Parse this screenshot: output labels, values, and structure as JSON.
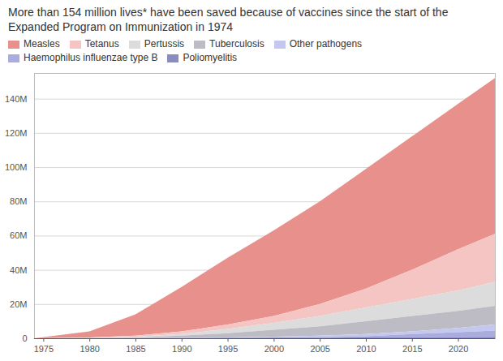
{
  "chart_data": {
    "type": "area",
    "title": "More than 154 million lives* have been saved because of vaccines since the start of the Expanded Program on Immunization in 1974",
    "stacked": true,
    "grid": true,
    "legend": "top",
    "x": [
      1974,
      1980,
      1985,
      1990,
      1995,
      2000,
      2005,
      2010,
      2015,
      2020,
      2024
    ],
    "xlim": [
      1974,
      2024
    ],
    "xticks": [
      1975,
      1980,
      1985,
      1990,
      1995,
      2000,
      2005,
      2010,
      2015,
      2020
    ],
    "ylim": [
      0,
      155
    ],
    "yticks": [
      0,
      {
        "value": 20,
        "label": "20M"
      },
      {
        "value": 40,
        "label": "40M"
      },
      {
        "value": 60,
        "label": "60M"
      },
      {
        "value": 80,
        "label": "80M"
      },
      {
        "value": 100,
        "label": "100M"
      },
      {
        "value": 120,
        "label": "120M"
      },
      {
        "value": 140,
        "label": "140M"
      }
    ],
    "series": [
      {
        "name": "Measles",
        "color": "#e8908c",
        "values": [
          0,
          3.5,
          12.5,
          26,
          39,
          50,
          60,
          70,
          78,
          85,
          91
        ]
      },
      {
        "name": "Tetanus",
        "color": "#f5c5c3",
        "values": [
          0,
          0.2,
          0.5,
          1.5,
          2.5,
          4,
          7,
          11,
          17,
          24,
          28
        ]
      },
      {
        "name": "Pertussis",
        "color": "#dcdcdc",
        "values": [
          0,
          0.2,
          0.5,
          1,
          2.5,
          4,
          6,
          8,
          10,
          12,
          14
        ]
      },
      {
        "name": "Tuberculosis",
        "color": "#bdbcc4",
        "values": [
          0,
          0.1,
          0.4,
          1.2,
          2.5,
          4,
          5.5,
          7.5,
          9,
          10,
          11
        ]
      },
      {
        "name": "Other pathogens",
        "color": "#c5c8ee",
        "values": [
          0,
          0,
          0.1,
          0.2,
          0.3,
          0.7,
          0.9,
          1.3,
          1.5,
          2.5,
          3.5
        ]
      },
      {
        "name": "Haemophilus influenzae type B",
        "color": "#a9acdc",
        "values": [
          0,
          0,
          0,
          0,
          0,
          0,
          0.2,
          0.7,
          1.9,
          2.8,
          3.7
        ]
      },
      {
        "name": "Poliomyelitis",
        "color": "#8a8cc0",
        "values": [
          0,
          0,
          0,
          0.1,
          0.2,
          0.3,
          0.4,
          0.5,
          0.6,
          0.7,
          0.8
        ]
      }
    ]
  }
}
